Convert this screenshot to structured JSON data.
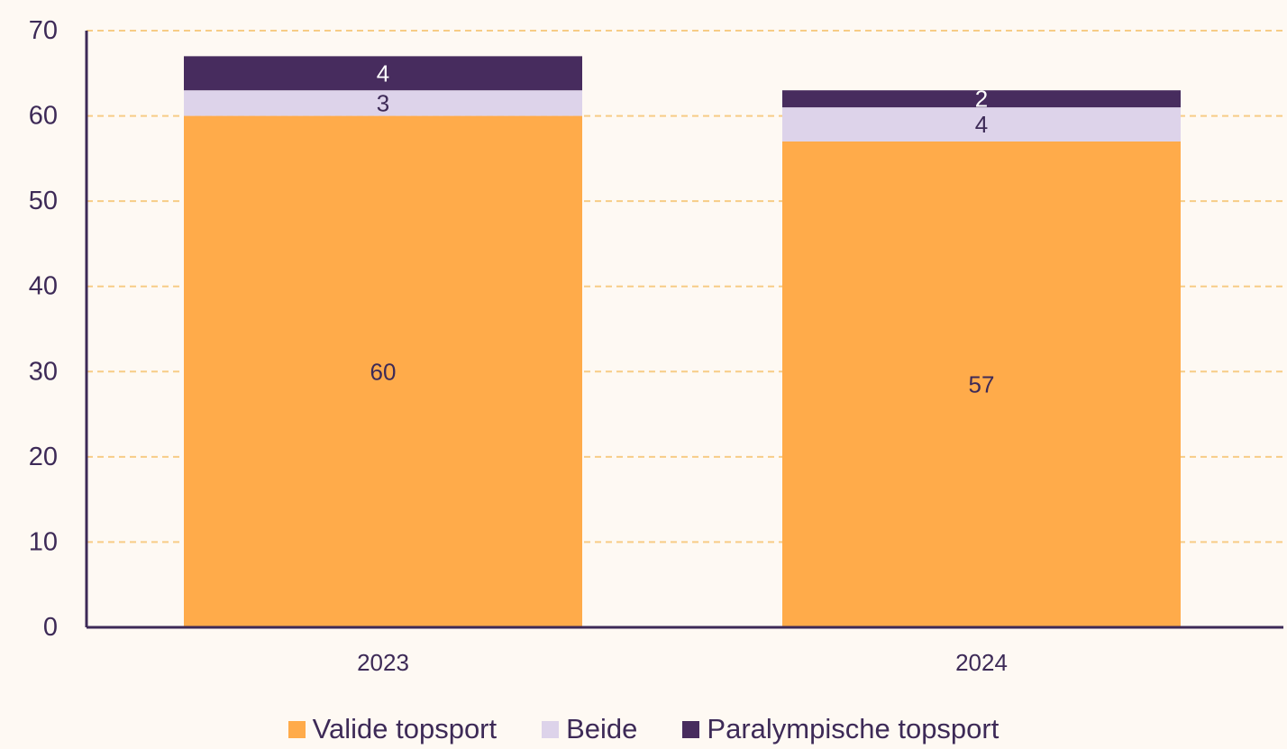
{
  "chart_data": {
    "type": "bar",
    "stacked": true,
    "categories": [
      "2023",
      "2024"
    ],
    "series": [
      {
        "name": "Valide topsport",
        "values": [
          60,
          57
        ],
        "color": "#ffab4a",
        "label_color": "#3d2a57"
      },
      {
        "name": "Beide",
        "values": [
          3,
          4
        ],
        "color": "#ddd3ea",
        "label_color": "#3d2a57"
      },
      {
        "name": "Paralympische topsport",
        "values": [
          4,
          2
        ],
        "color": "#472c5e",
        "label_color": "#ffffff"
      }
    ],
    "ylim": [
      0,
      70
    ],
    "yticks": [
      "0",
      "10",
      "20",
      "30",
      "40",
      "50",
      "60",
      "70"
    ],
    "grid": true,
    "legend_position": "bottom"
  },
  "colors": {
    "axis": "#3d2a57",
    "grid": "#f7cc86",
    "background": "#fef9f3"
  }
}
